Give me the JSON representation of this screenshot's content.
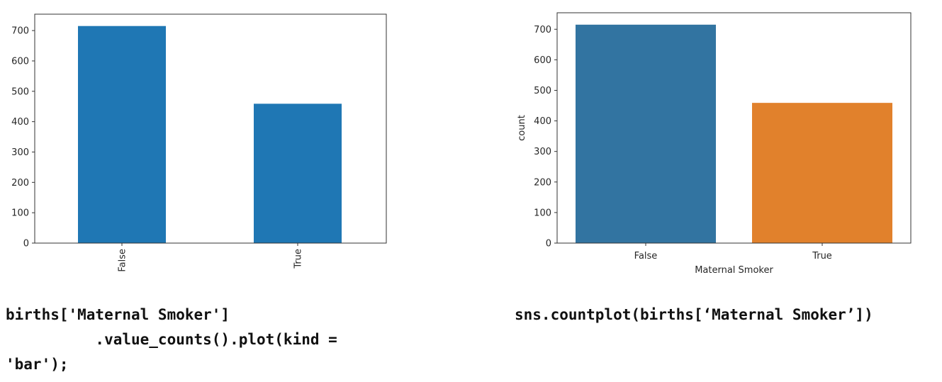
{
  "chart_data": [
    {
      "type": "bar",
      "categories": [
        "False",
        "True"
      ],
      "values": [
        715,
        459
      ],
      "ylim": [
        0,
        754
      ],
      "yticks": [
        0,
        100,
        200,
        300,
        400,
        500,
        600,
        700
      ],
      "xlabel": "",
      "ylabel": "",
      "tick_rotation": 90,
      "colors": [
        "#1f77b4",
        "#1f77b4"
      ],
      "grid": false,
      "legend": "none"
    },
    {
      "type": "bar",
      "categories": [
        "False",
        "True"
      ],
      "values": [
        715,
        459
      ],
      "ylim": [
        0,
        754
      ],
      "yticks": [
        0,
        100,
        200,
        300,
        400,
        500,
        600,
        700
      ],
      "xlabel": "Maternal Smoker",
      "ylabel": "count",
      "tick_rotation": 0,
      "colors": [
        "#3274a1",
        "#e1812c"
      ],
      "grid": false,
      "legend": "none"
    }
  ],
  "code": {
    "left": [
      "births['Maternal Smoker']",
      "          .value_counts().plot(kind =",
      "'bar');"
    ],
    "right": [
      "sns.countplot(births[‘Maternal Smoker’])"
    ]
  }
}
